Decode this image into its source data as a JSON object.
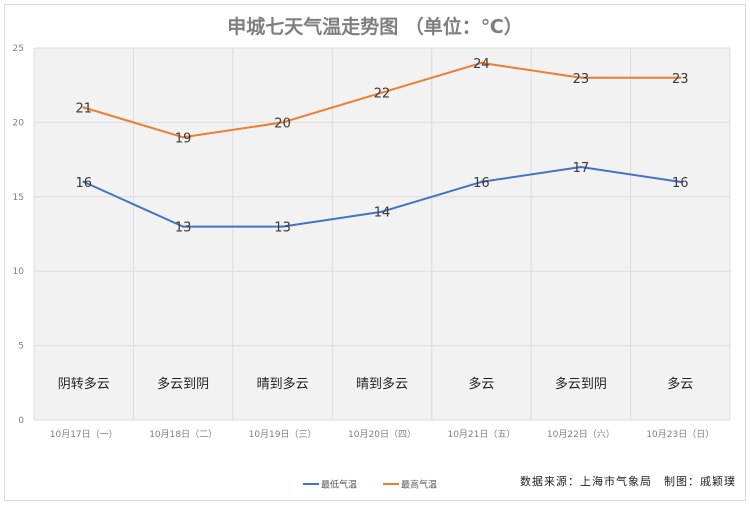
{
  "chart_data": {
    "type": "line",
    "title": "申城七天气温走势图 （单位：℃）",
    "categories": [
      "10月17日（一）",
      "10月18日（二）",
      "10月19日（三）",
      "10月20日（四）",
      "10月21日（五）",
      "10月22日（六）",
      "10月23日（日）"
    ],
    "weather": [
      "阴转多云",
      "多云到阴",
      "晴到多云",
      "晴到多云",
      "多云",
      "多云到阴",
      "多云"
    ],
    "series": [
      {
        "name": "最低气温",
        "color": "#4472c4",
        "values": [
          16,
          13,
          13,
          14,
          16,
          17,
          16
        ]
      },
      {
        "name": "最高气温",
        "color": "#ed7d31",
        "values": [
          21,
          19,
          20,
          22,
          24,
          23,
          23
        ]
      }
    ],
    "ylim": [
      0,
      25
    ],
    "yticks": [
      0,
      5,
      10,
      15,
      20,
      25
    ],
    "grid": true,
    "legend_position": "bottom"
  },
  "source_text": "数据来源：上海市气象局　制图：戚颖璞"
}
